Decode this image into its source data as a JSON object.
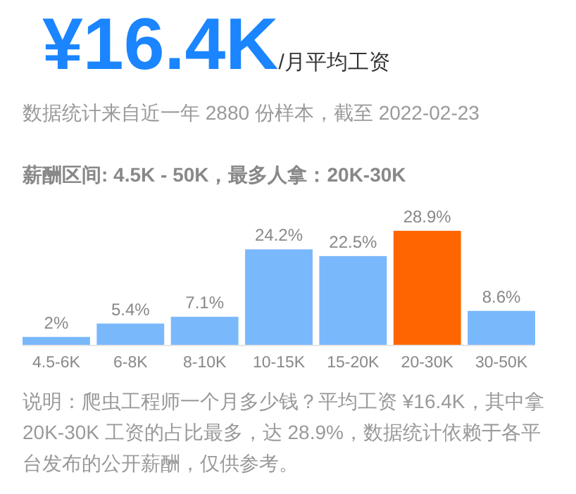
{
  "chart_data": {
    "type": "bar",
    "title": "¥16.4K",
    "subtitle": "/月平均工资",
    "annotations": [
      "数据统计来自近一年 2880 份样本，截至 2022-02-23",
      "薪酬区间: 4.5K - 50K，最多人拿：20K-30K",
      "说明：爬虫工程师一个月多少钱？平均工资 ¥16.4K，其中拿 20K-30K 工资的占比最多，达 28.9%，数据统计依赖于各平台发布的公开薪酬，仅供参考。"
    ],
    "categories": [
      "4.5-6K",
      "6-8K",
      "8-10K",
      "10-15K",
      "15-20K",
      "20-30K",
      "30-50K"
    ],
    "values": [
      2,
      5.4,
      7.1,
      24.2,
      22.5,
      28.9,
      8.6
    ],
    "value_labels": [
      "2%",
      "5.4%",
      "7.1%",
      "24.2%",
      "22.5%",
      "28.9%",
      "8.6%"
    ],
    "colors": [
      "#7ab8fc",
      "#7ab8fc",
      "#7ab8fc",
      "#7ab8fc",
      "#7ab8fc",
      "#ff6600",
      "#7ab8fc"
    ]
  }
}
